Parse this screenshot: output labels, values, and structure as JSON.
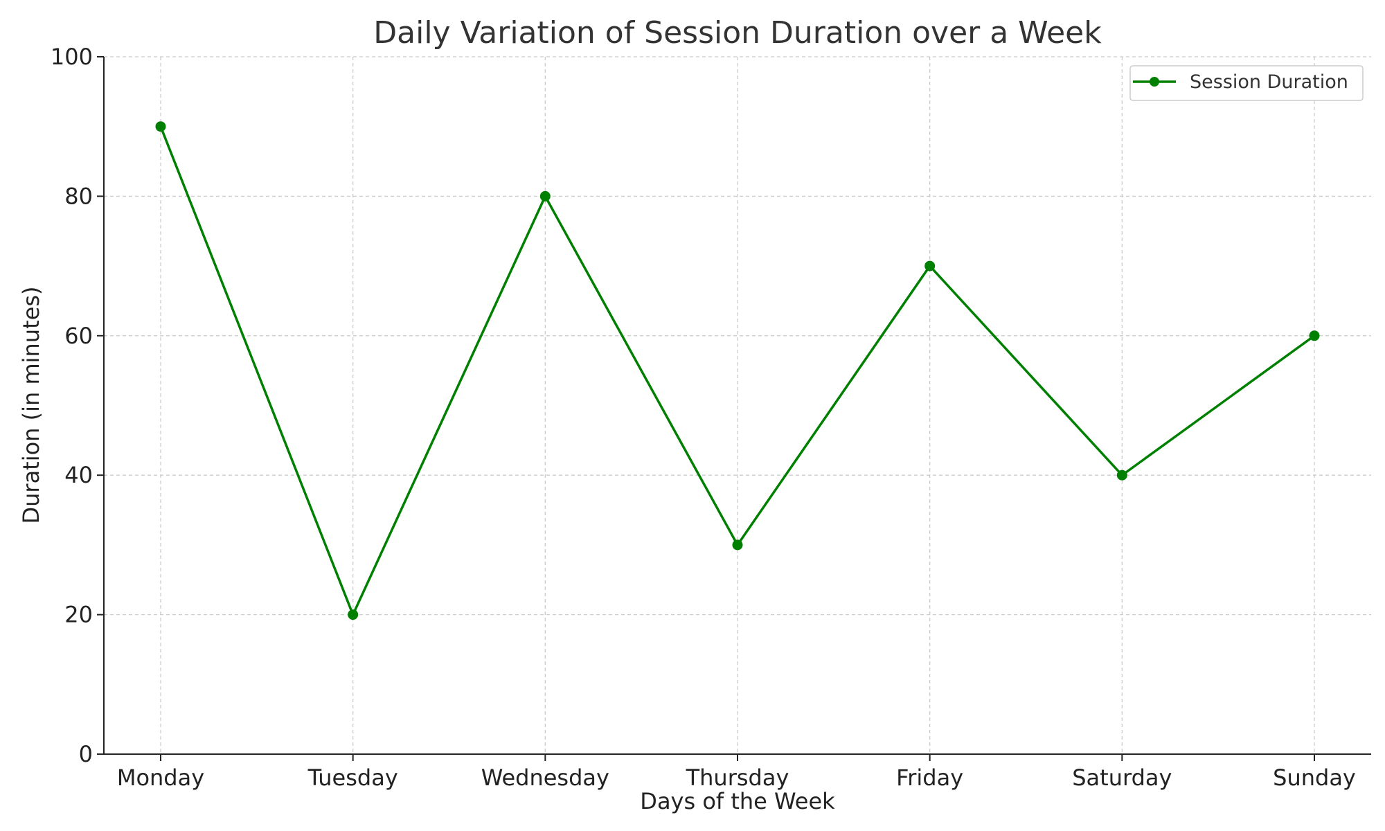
{
  "chart_data": {
    "type": "line",
    "title": "Daily Variation of Session Duration over a Week",
    "xlabel": "Days of the Week",
    "ylabel": "Duration (in minutes)",
    "categories": [
      "Monday",
      "Tuesday",
      "Wednesday",
      "Thursday",
      "Friday",
      "Saturday",
      "Sunday"
    ],
    "series": [
      {
        "name": "Session Duration",
        "values": [
          90,
          20,
          80,
          30,
          70,
          40,
          60
        ],
        "color": "#008000",
        "marker": "circle"
      }
    ],
    "ylim": [
      0,
      100
    ],
    "yticks": [
      0,
      20,
      40,
      60,
      80,
      100
    ],
    "grid": true,
    "legend": "top-right"
  }
}
